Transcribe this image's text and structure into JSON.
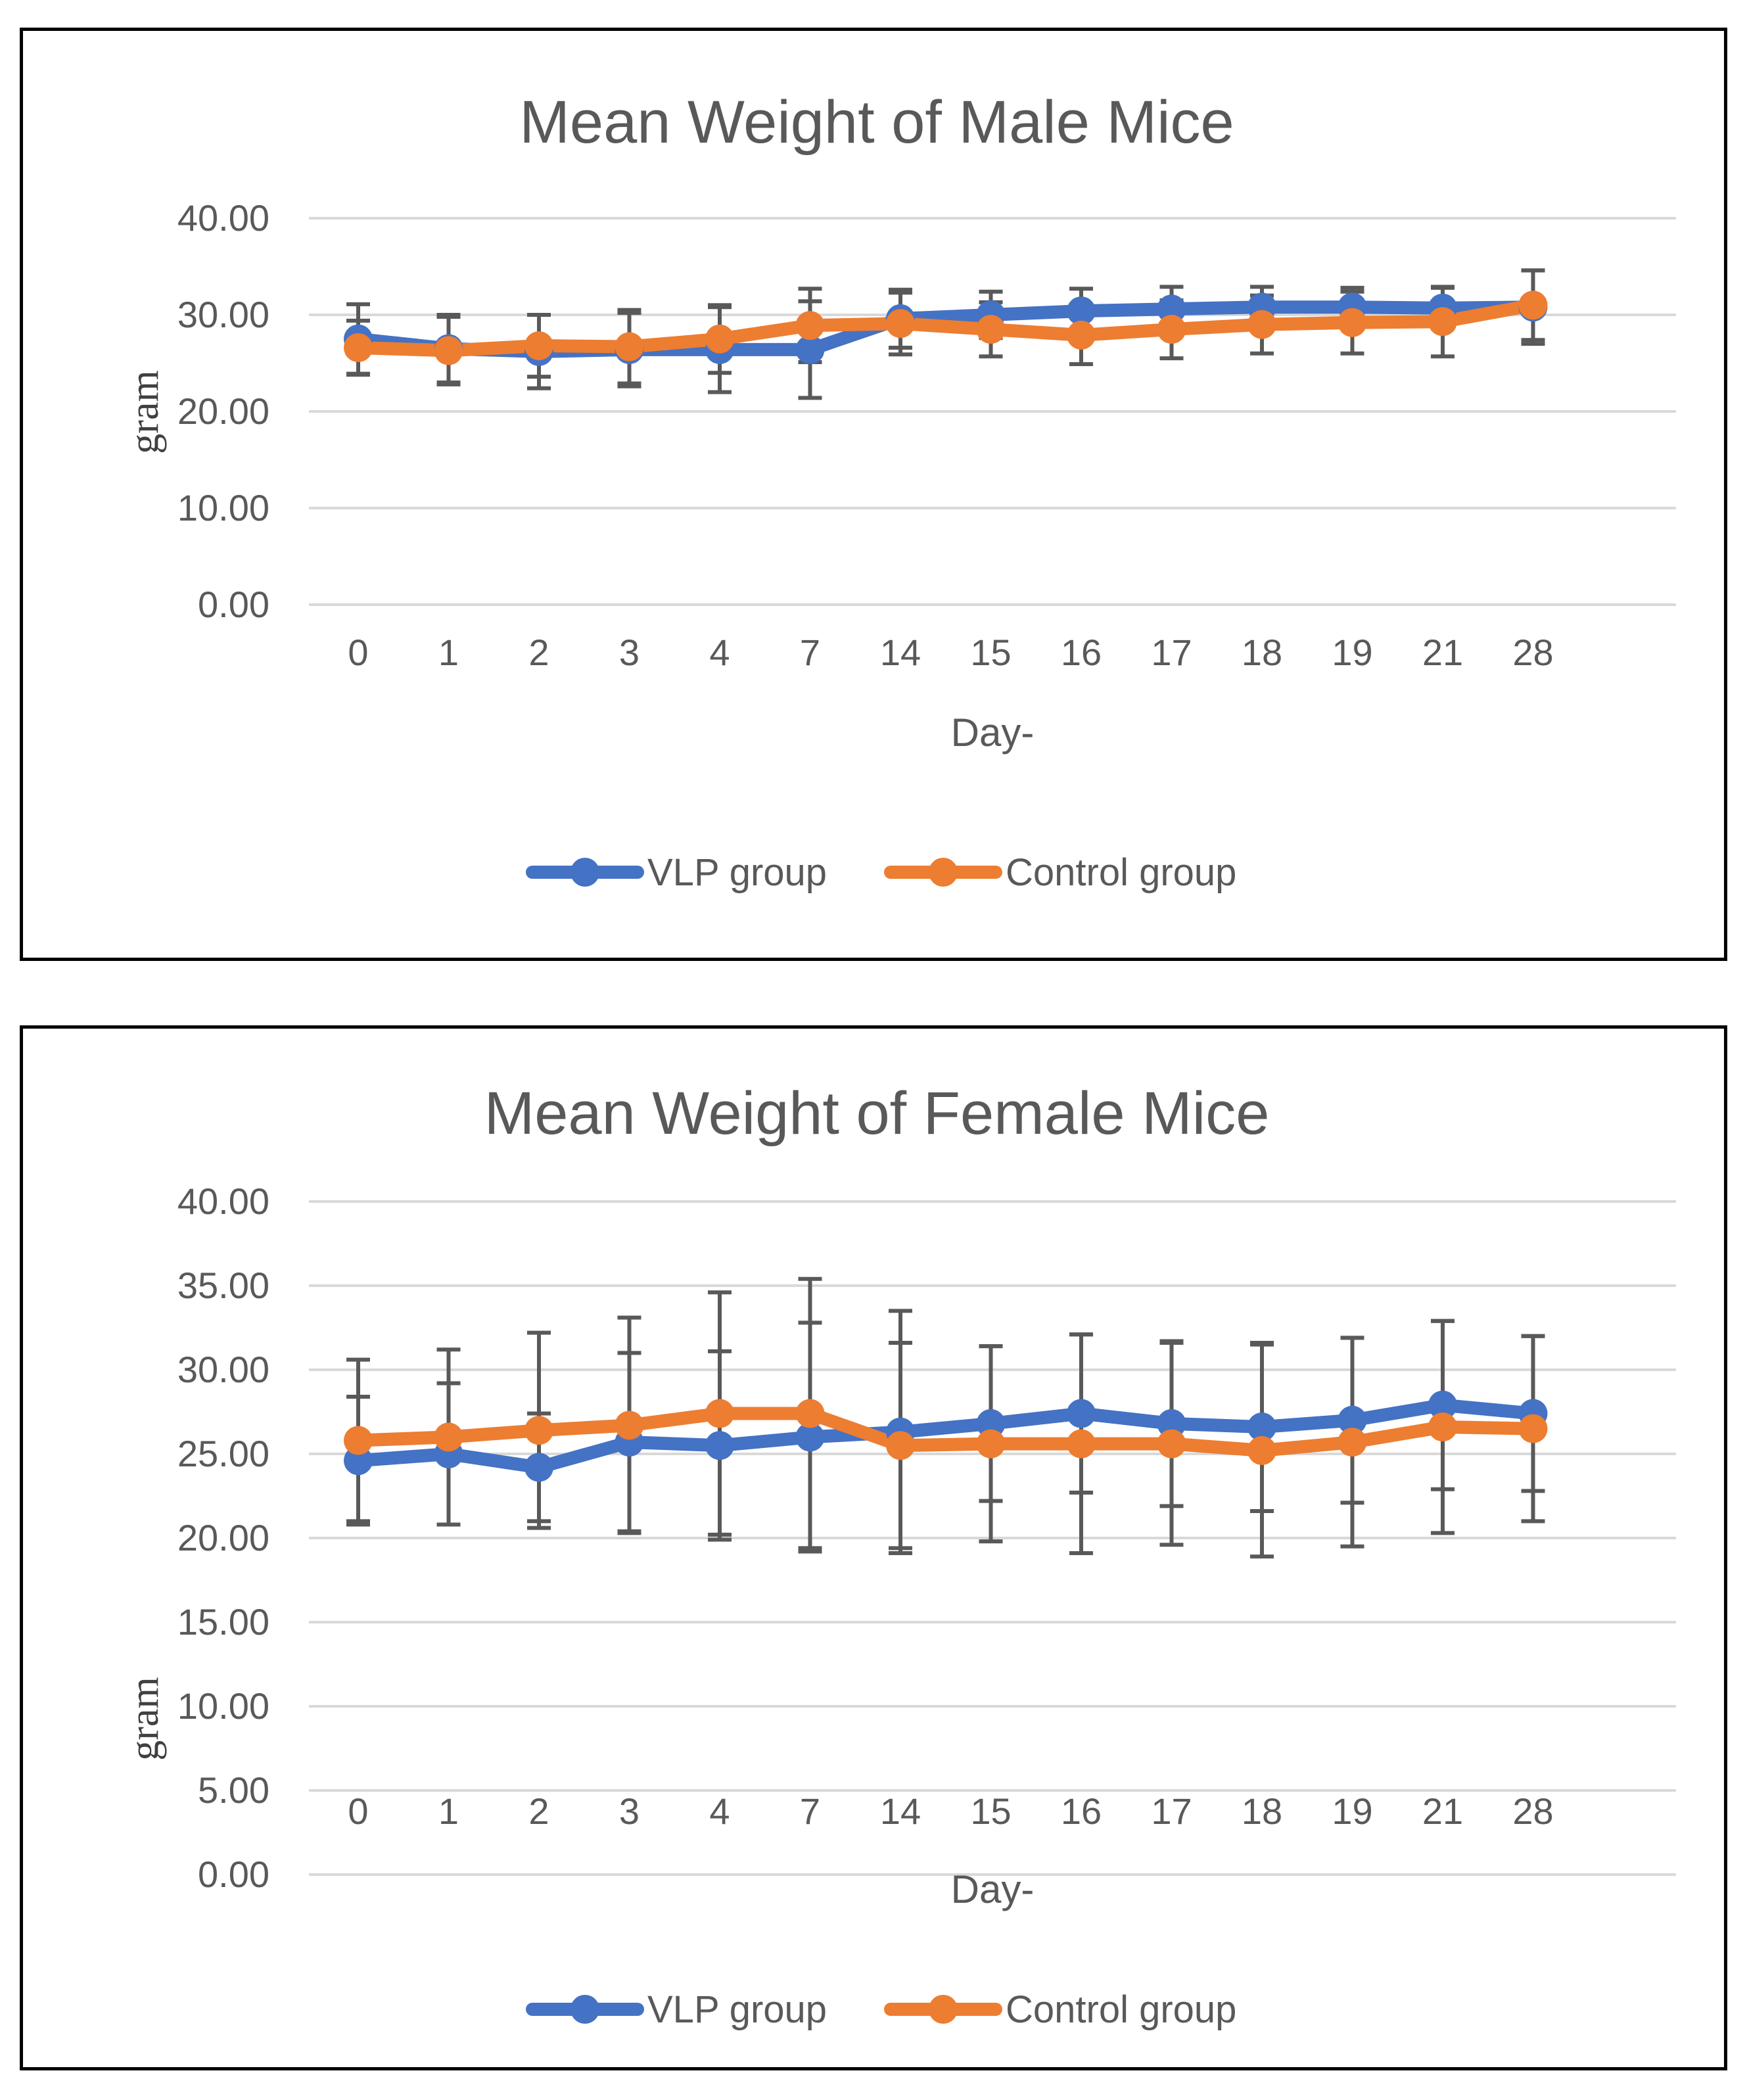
{
  "chart_data": [
    {
      "type": "line",
      "title": "Mean Weight of Male Mice",
      "xlabel": "Day-",
      "ylabel": "gram",
      "ylim": [
        0,
        40
      ],
      "yticks": [
        "0.00",
        "10.00",
        "20.00",
        "30.00",
        "40.00"
      ],
      "categories": [
        "0",
        "1",
        "2",
        "3",
        "4",
        "7",
        "14",
        "15",
        "16",
        "17",
        "18",
        "19",
        "21",
        "28"
      ],
      "grid": true,
      "legend_position": "bottom",
      "series": [
        {
          "name": "VLP group",
          "color": "#4472C4",
          "values": [
            27.5,
            26.5,
            26.2,
            26.4,
            26.4,
            26.4,
            29.6,
            30.0,
            30.4,
            30.6,
            30.8,
            30.8,
            30.7,
            30.8
          ],
          "errors": [
            3.6,
            3.5,
            3.8,
            3.8,
            4.4,
            5.0,
            3.0,
            2.4,
            2.3,
            2.3,
            2.1,
            2.0,
            2.1,
            3.8
          ]
        },
        {
          "name": "Control group",
          "color": "#ED7D31",
          "values": [
            26.6,
            26.3,
            26.8,
            26.7,
            27.5,
            28.9,
            29.1,
            28.5,
            27.9,
            28.5,
            29.0,
            29.2,
            29.3,
            31.0
          ],
          "errors": [
            2.8,
            3.5,
            3.2,
            3.8,
            3.5,
            3.8,
            3.2,
            2.8,
            3.0,
            3.0,
            3.0,
            3.2,
            3.6,
            3.6
          ]
        }
      ]
    },
    {
      "type": "line",
      "title": "Mean Weight of Female Mice",
      "xlabel": "Day-",
      "ylabel": "gram",
      "ylim": [
        0,
        40
      ],
      "yticks": [
        "0.00",
        "5.00",
        "10.00",
        "15.00",
        "20.00",
        "25.00",
        "30.00",
        "35.00",
        "40.00"
      ],
      "categories": [
        "0",
        "1",
        "2",
        "3",
        "4",
        "7",
        "14",
        "15",
        "16",
        "17",
        "18",
        "19",
        "21",
        "28"
      ],
      "grid": true,
      "legend_position": "bottom",
      "series": [
        {
          "name": "VLP group",
          "color": "#4472C4",
          "values": [
            24.6,
            25.0,
            24.2,
            25.7,
            25.5,
            26.0,
            26.3,
            26.8,
            27.4,
            26.8,
            26.6,
            27.0,
            27.9,
            27.4
          ],
          "errors": [
            3.8,
            4.2,
            3.2,
            5.3,
            5.6,
            6.8,
            7.2,
            4.6,
            4.7,
            4.9,
            5.0,
            4.9,
            5.0,
            4.6
          ]
        },
        {
          "name": "Control group",
          "color": "#ED7D31",
          "values": [
            25.8,
            26.0,
            26.4,
            26.7,
            27.4,
            27.4,
            25.5,
            25.6,
            25.6,
            25.6,
            25.2,
            25.7,
            26.6,
            26.5
          ],
          "errors": [
            4.8,
            5.2,
            5.8,
            6.4,
            7.2,
            8.0,
            6.1,
            5.8,
            6.5,
            6.0,
            6.3,
            6.2,
            6.3,
            5.5
          ]
        }
      ]
    }
  ]
}
